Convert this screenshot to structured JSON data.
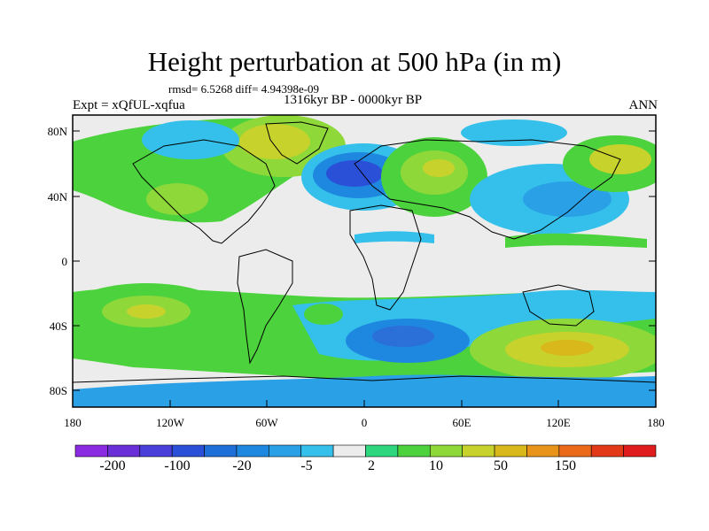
{
  "title": "Height perturbation at 500 hPa (in m)",
  "rmsd_line": "rmsd= 6.5268 diff= 4.94398e-09",
  "period": "1316kyr BP - 0000kyr BP",
  "experiment": "Expt = xQfUL-xqfua",
  "season": "ANN",
  "lat_labels": [
    "80N",
    "40N",
    "0",
    "40S",
    "80S"
  ],
  "lon_labels": [
    "180",
    "120W",
    "60W",
    "0",
    "60E",
    "120E",
    "180"
  ],
  "colorbar": {
    "labels": [
      "-200",
      "-100",
      "-20",
      "-5",
      "2",
      "10",
      "50",
      "150"
    ],
    "colors": [
      "#8a2be2",
      "#6a2fd6",
      "#4a3fd8",
      "#2a50d8",
      "#1f6fd8",
      "#1e88e0",
      "#2aa0e6",
      "#34c0ea",
      "#ececec",
      "#2ed67e",
      "#4cd23c",
      "#8ed83a",
      "#c8d22c",
      "#d9b81c",
      "#e8941a",
      "#ea6a1a",
      "#e23a18",
      "#e01c1c"
    ]
  },
  "map_colors": {
    "neutral": "#ececec",
    "green": "#2ed67e",
    "lightgreen": "#4cd23c",
    "yellowgreen": "#8ed83a",
    "yellow": "#c8d22c",
    "gold": "#d9b81c",
    "cyan": "#34c0ea",
    "lightblue": "#2aa0e6",
    "blue": "#1e88e0",
    "darkblue": "#2a50d8"
  }
}
